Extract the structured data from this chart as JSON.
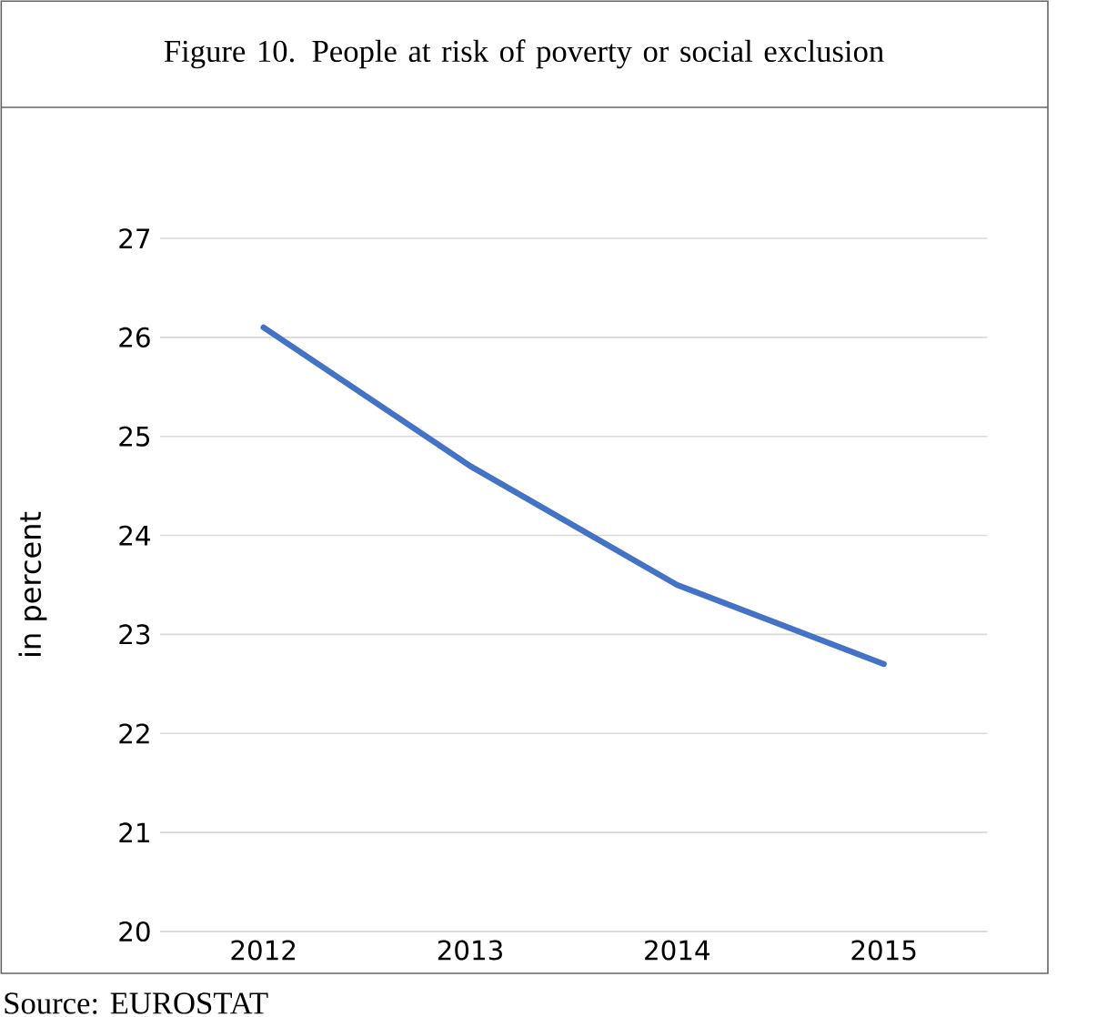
{
  "chart_data": {
    "type": "line",
    "title": "Figure 10. People at risk of poverty or social exclusion",
    "ylabel": "in percent",
    "categories": [
      "2012",
      "2013",
      "2014",
      "2015"
    ],
    "values": [
      26.1,
      24.7,
      23.5,
      22.7
    ],
    "color": "#4472c4",
    "ylim": [
      20,
      27
    ],
    "yticks": [
      20,
      21,
      22,
      23,
      24,
      25,
      26,
      27
    ],
    "grid": "y",
    "marker": "none",
    "line_style": "solid",
    "annotations": [
      "Source: EUROSTAT"
    ]
  }
}
